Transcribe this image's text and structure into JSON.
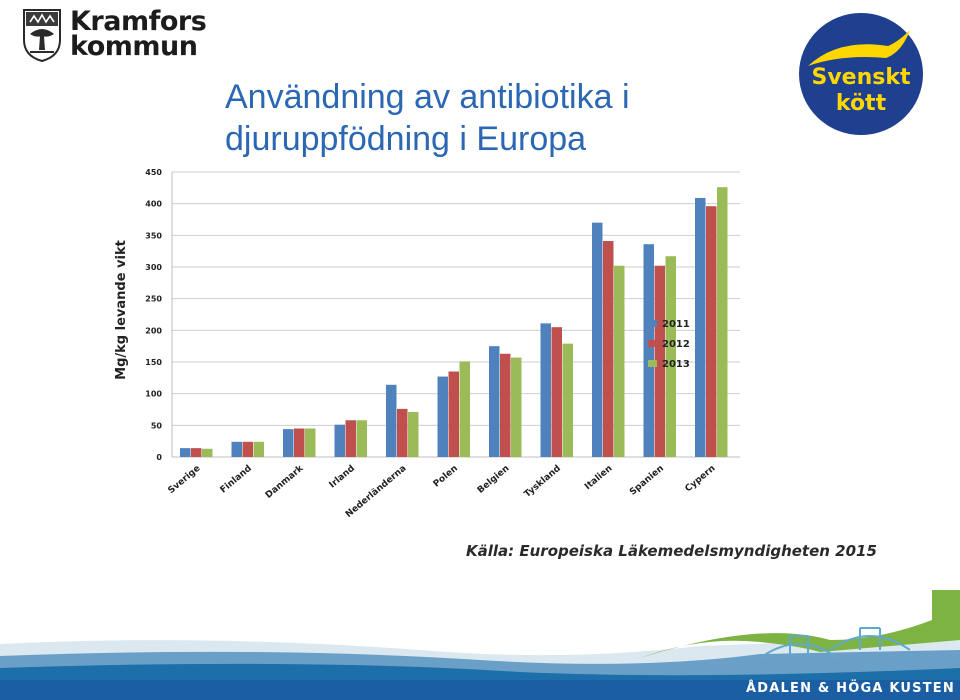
{
  "header": {
    "org_name_line1": "Kramfors",
    "org_name_line2": "kommun",
    "title_line1": "Användning av antibiotika i",
    "title_line2": "djuruppfödning i Europa",
    "partner_logo_line1": "Svenskt",
    "partner_logo_line2": "kött"
  },
  "colors": {
    "title": "#2b67b2",
    "s2011": "#4f81bd",
    "s2012": "#c0504d",
    "s2013": "#9bbb59",
    "partner_logo_bg": "#1f3f8f",
    "partner_logo_text": "#ffd700"
  },
  "chart_data": {
    "type": "bar",
    "ylabel": "Mg/kg levande vikt",
    "ylim": [
      0,
      450
    ],
    "yticks": [
      0,
      50,
      100,
      150,
      200,
      250,
      300,
      350,
      400,
      450
    ],
    "grid": true,
    "legend_position": "right",
    "categories": [
      "Sverige",
      "Finland",
      "Danmark",
      "Irland",
      "Nederländerna",
      "Polen",
      "Belgien",
      "Tyskland",
      "Italien",
      "Spanien",
      "Cypern"
    ],
    "series": [
      {
        "name": "2011",
        "values": [
          14,
          24,
          44,
          51,
          114,
          127,
          175,
          211,
          370,
          336,
          409
        ]
      },
      {
        "name": "2012",
        "values": [
          14,
          24,
          45,
          58,
          76,
          135,
          163,
          205,
          341,
          302,
          396
        ]
      },
      {
        "name": "2013",
        "values": [
          13,
          24,
          45,
          58,
          71,
          151,
          157,
          179,
          302,
          317,
          426
        ]
      }
    ]
  },
  "source": "Källa: Europeiska Läkemedelsmyndigheten 2015",
  "footer": {
    "text": "ÅDALEN & HÖGA KUSTEN"
  }
}
